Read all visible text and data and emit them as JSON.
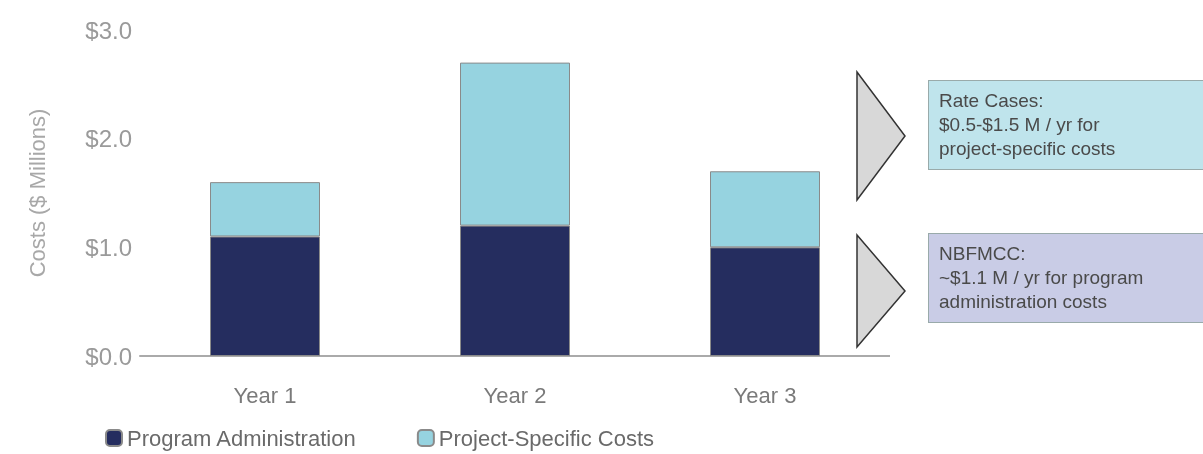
{
  "chart_data": {
    "type": "bar",
    "stacked": true,
    "ylabel": "Costs ($ Millions)",
    "categories": [
      "Year 1",
      "Year 2",
      "Year 3"
    ],
    "series": [
      {
        "name": "Program Administration",
        "color": "#252d5f",
        "values": [
          1.1,
          1.2,
          1.0
        ]
      },
      {
        "name": "Project-Specific Costs",
        "color": "#96d3e0",
        "values": [
          0.5,
          1.5,
          0.7
        ]
      }
    ],
    "ylim": [
      0,
      3
    ],
    "yticks": [
      {
        "value": 0,
        "label": "$0.0"
      },
      {
        "value": 1,
        "label": "$1.0"
      },
      {
        "value": 2,
        "label": "$2.0"
      },
      {
        "value": 3,
        "label": "$3.0"
      }
    ],
    "grid": false,
    "legend": "bottom left",
    "annotations": [
      "Rate Cases:\n$0.5-$1.5 M / yr for\nproject-specific costs",
      "NBFMCC:\n~$1.1 M / yr for program\nadministration costs"
    ]
  }
}
